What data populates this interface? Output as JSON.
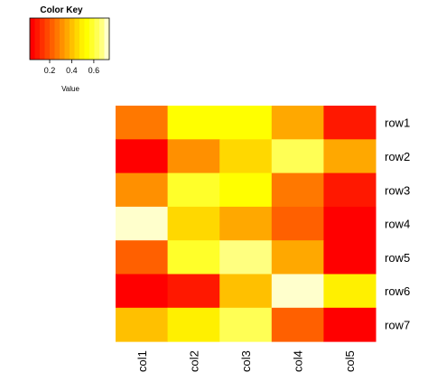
{
  "color_key": {
    "title": "Color Key",
    "ticks": [
      "0.2",
      "0.4",
      "0.6"
    ],
    "tick_values": [
      0.2,
      0.4,
      0.6
    ],
    "range": [
      0.02,
      0.74
    ],
    "bins": 16,
    "value_label": "Value"
  },
  "colors": {
    "low": "#ff0000",
    "high": "#ffffcc",
    "palette": [
      "#ff0000",
      "#ff1800",
      "#ff3000",
      "#ff4800",
      "#ff6000",
      "#ff7800",
      "#ff9000",
      "#ffa800",
      "#ffc000",
      "#ffd800",
      "#fff000",
      "#ffff00",
      "#ffff2a",
      "#ffff55",
      "#ffff80",
      "#ffffcc"
    ]
  },
  "chart_data": {
    "type": "heatmap",
    "rows": [
      "row1",
      "row2",
      "row3",
      "row4",
      "row5",
      "row6",
      "row7"
    ],
    "columns": [
      "col1",
      "col2",
      "col3",
      "col4",
      "col5"
    ],
    "values": [
      [
        0.26,
        0.55,
        0.55,
        0.34,
        0.07
      ],
      [
        0.03,
        0.33,
        0.45,
        0.62,
        0.36
      ],
      [
        0.31,
        0.56,
        0.54,
        0.26,
        0.07
      ],
      [
        0.72,
        0.43,
        0.36,
        0.2,
        0.03
      ],
      [
        0.24,
        0.58,
        0.66,
        0.37,
        0.03
      ],
      [
        0.03,
        0.09,
        0.4,
        0.7,
        0.49
      ],
      [
        0.38,
        0.5,
        0.63,
        0.24,
        0.03
      ]
    ],
    "title": "",
    "xlabel": "",
    "ylabel": "",
    "legend": "top-left"
  }
}
